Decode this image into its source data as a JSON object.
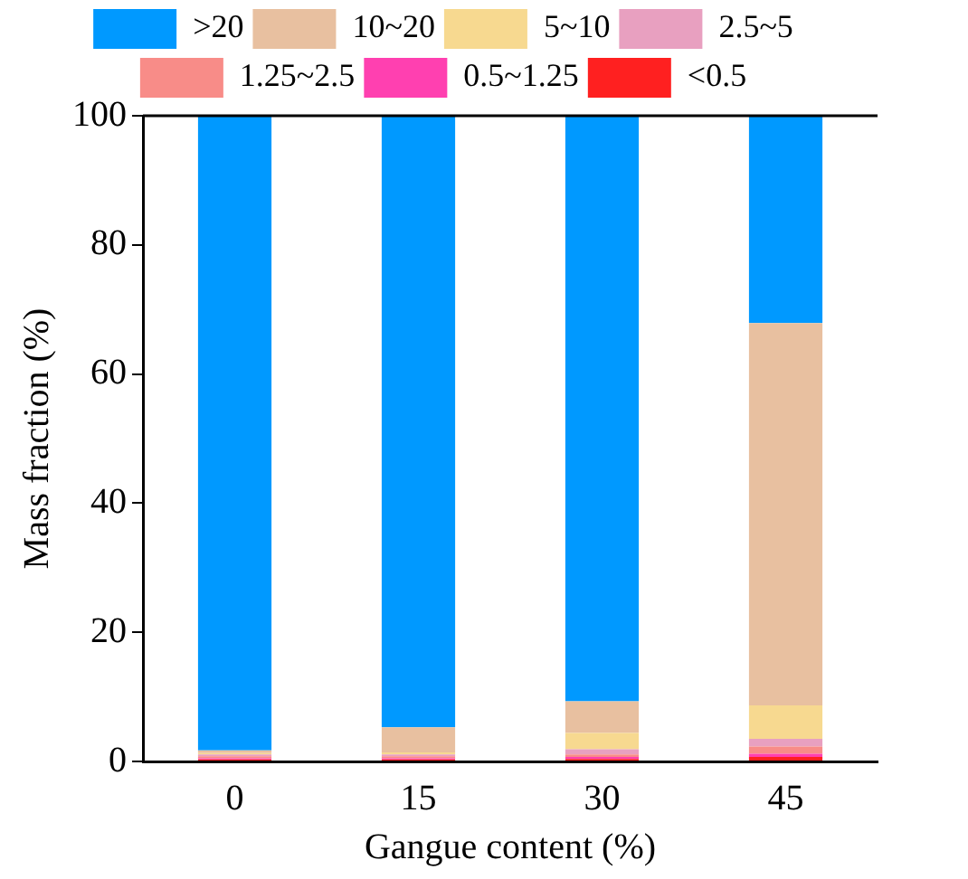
{
  "chart_data": {
    "type": "bar",
    "stacked": true,
    "xlabel": "Gangue content (%)",
    "ylabel": "Mass fraction (%)",
    "categories": [
      "0",
      "15",
      "30",
      "45"
    ],
    "series": [
      {
        "name": "<0.5",
        "color": "#ff2020",
        "values": [
          0.3,
          0.3,
          0.4,
          0.7
        ]
      },
      {
        "name": "0.5~1.25",
        "color": "#ff40b0",
        "values": [
          0.2,
          0.2,
          0.3,
          0.5
        ]
      },
      {
        "name": "1.25~2.5",
        "color": "#f88c88",
        "values": [
          0.3,
          0.3,
          0.4,
          1.1
        ]
      },
      {
        "name": "2.5~5",
        "color": "#e8a0c0",
        "values": [
          0.3,
          0.3,
          0.8,
          1.2
        ]
      },
      {
        "name": "5~10",
        "color": "#f7d990",
        "values": [
          0.2,
          0.3,
          2.5,
          5.2
        ]
      },
      {
        "name": "10~20",
        "color": "#e8c0a0",
        "values": [
          0.4,
          3.9,
          4.9,
          59.2
        ]
      },
      {
        "name": ">20",
        "color": "#0099ff",
        "values": [
          98.3,
          94.7,
          90.7,
          32.1
        ]
      }
    ],
    "ylim": [
      0,
      100
    ],
    "yticks": [
      0,
      20,
      40,
      60,
      80,
      100
    ],
    "grid": false,
    "legend": "top"
  }
}
